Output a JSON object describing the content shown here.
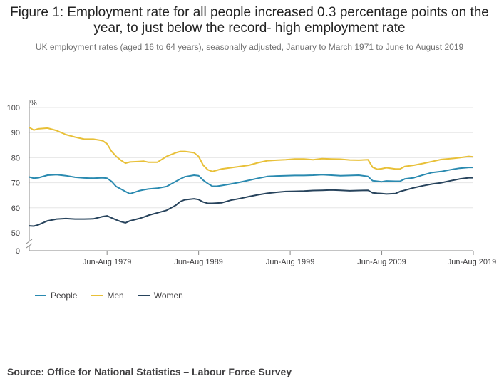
{
  "title": "Figure 1: Employment rate for all people increased 0.3 percentage points on the year, to just below the record- high employment rate",
  "subtitle": "UK employment rates (aged 16 to 64 years), seasonally adjusted, January to March 1971 to June to August 2019",
  "source": "Source: Office for National Statistics – Labour Force Survey",
  "colors": {
    "people": "#206095",
    "people_line": "#2a8ab0",
    "men": "#e8c038",
    "women": "#27435c",
    "grid": "#e6e6e6",
    "axis": "#888888"
  },
  "chart_data": {
    "type": "line",
    "title": "Figure 1: Employment rate for all people increased 0.3 percentage points on the year, to just below the record- high employment rate",
    "ylabel": "%",
    "ylim": [
      50,
      100
    ],
    "y_axis_break": true,
    "y_ticks": [
      "100",
      "90",
      "80",
      "70",
      "60",
      "50",
      "0"
    ],
    "x_ticks": [
      "Jun-Aug 1979",
      "Jun-Aug 1989",
      "Jun-Aug 1999",
      "Jun-Aug 2009",
      "Jun-Aug 2019"
    ],
    "x_tick_years": [
      1979.5,
      1989.5,
      1999.5,
      2009.5,
      2019.5
    ],
    "x_range": [
      1971.0,
      2019.5
    ],
    "grid": true,
    "legend": "bottom-left",
    "x": [
      1971.0,
      1971.5,
      1972,
      1973,
      1974,
      1975,
      1976,
      1977,
      1978,
      1979,
      1979.5,
      1980,
      1980.5,
      1981,
      1981.5,
      1982,
      1983,
      1983.5,
      1984,
      1985,
      1986,
      1987,
      1987.5,
      1988,
      1989,
      1989.5,
      1990,
      1990.5,
      1991,
      1991.5,
      1992,
      1993,
      1994,
      1995,
      1996,
      1997,
      1998,
      1999,
      2000,
      2001,
      2002,
      2003,
      2004,
      2005,
      2006,
      2007,
      2008,
      2008.5,
      2009,
      2009.5,
      2010,
      2011,
      2011.5,
      2012,
      2013,
      2014,
      2015,
      2016,
      2017,
      2018,
      2019,
      2019.5
    ],
    "series": [
      {
        "name": "People",
        "values": [
          72.3,
          71.8,
          72.0,
          73.0,
          73.2,
          72.8,
          72.2,
          71.9,
          71.8,
          72.0,
          71.8,
          70.5,
          68.5,
          67.5,
          66.5,
          65.6,
          66.8,
          67.2,
          67.5,
          67.8,
          68.5,
          70.5,
          71.5,
          72.4,
          73.0,
          72.8,
          71.0,
          69.7,
          68.6,
          68.6,
          68.9,
          69.5,
          70.2,
          71.0,
          71.8,
          72.5,
          72.7,
          72.8,
          72.9,
          72.9,
          73.0,
          73.2,
          73.0,
          72.8,
          72.9,
          73.0,
          72.5,
          70.8,
          70.6,
          70.4,
          70.7,
          70.6,
          70.6,
          71.5,
          72.0,
          73.1,
          74.1,
          74.5,
          75.2,
          75.8,
          76.1,
          76.1
        ]
      },
      {
        "name": "Men",
        "values": [
          92.1,
          91.0,
          91.5,
          91.8,
          90.8,
          89.2,
          88.2,
          87.4,
          87.4,
          86.8,
          85.5,
          82.5,
          80.5,
          79.0,
          77.8,
          78.3,
          78.5,
          78.6,
          78.2,
          78.2,
          80.5,
          82.0,
          82.5,
          82.5,
          82.0,
          80.5,
          77.0,
          75.2,
          74.5,
          75.0,
          75.5,
          76.0,
          76.5,
          77.0,
          78.0,
          78.8,
          79.0,
          79.2,
          79.5,
          79.5,
          79.2,
          79.6,
          79.5,
          79.4,
          79.1,
          79.0,
          79.2,
          76.2,
          75.4,
          75.6,
          76.0,
          75.5,
          75.5,
          76.5,
          77.0,
          77.7,
          78.5,
          79.3,
          79.6,
          80.0,
          80.5,
          80.3
        ]
      },
      {
        "name": "Women",
        "values": [
          52.8,
          52.7,
          53.2,
          54.8,
          55.5,
          55.7,
          55.5,
          55.5,
          55.6,
          56.5,
          56.8,
          56.0,
          55.2,
          54.5,
          54.0,
          54.8,
          55.7,
          56.3,
          57.0,
          58.0,
          59.0,
          61.0,
          62.5,
          63.2,
          63.6,
          63.3,
          62.3,
          61.8,
          61.8,
          61.9,
          62.0,
          63.0,
          63.7,
          64.5,
          65.2,
          65.8,
          66.2,
          66.5,
          66.6,
          66.7,
          66.9,
          67.0,
          67.1,
          67.0,
          66.8,
          66.9,
          67.0,
          66.0,
          65.8,
          65.7,
          65.5,
          65.7,
          66.5,
          67.0,
          68.0,
          68.8,
          69.5,
          70.0,
          70.8,
          71.5,
          72.0,
          72.0
        ]
      }
    ]
  }
}
